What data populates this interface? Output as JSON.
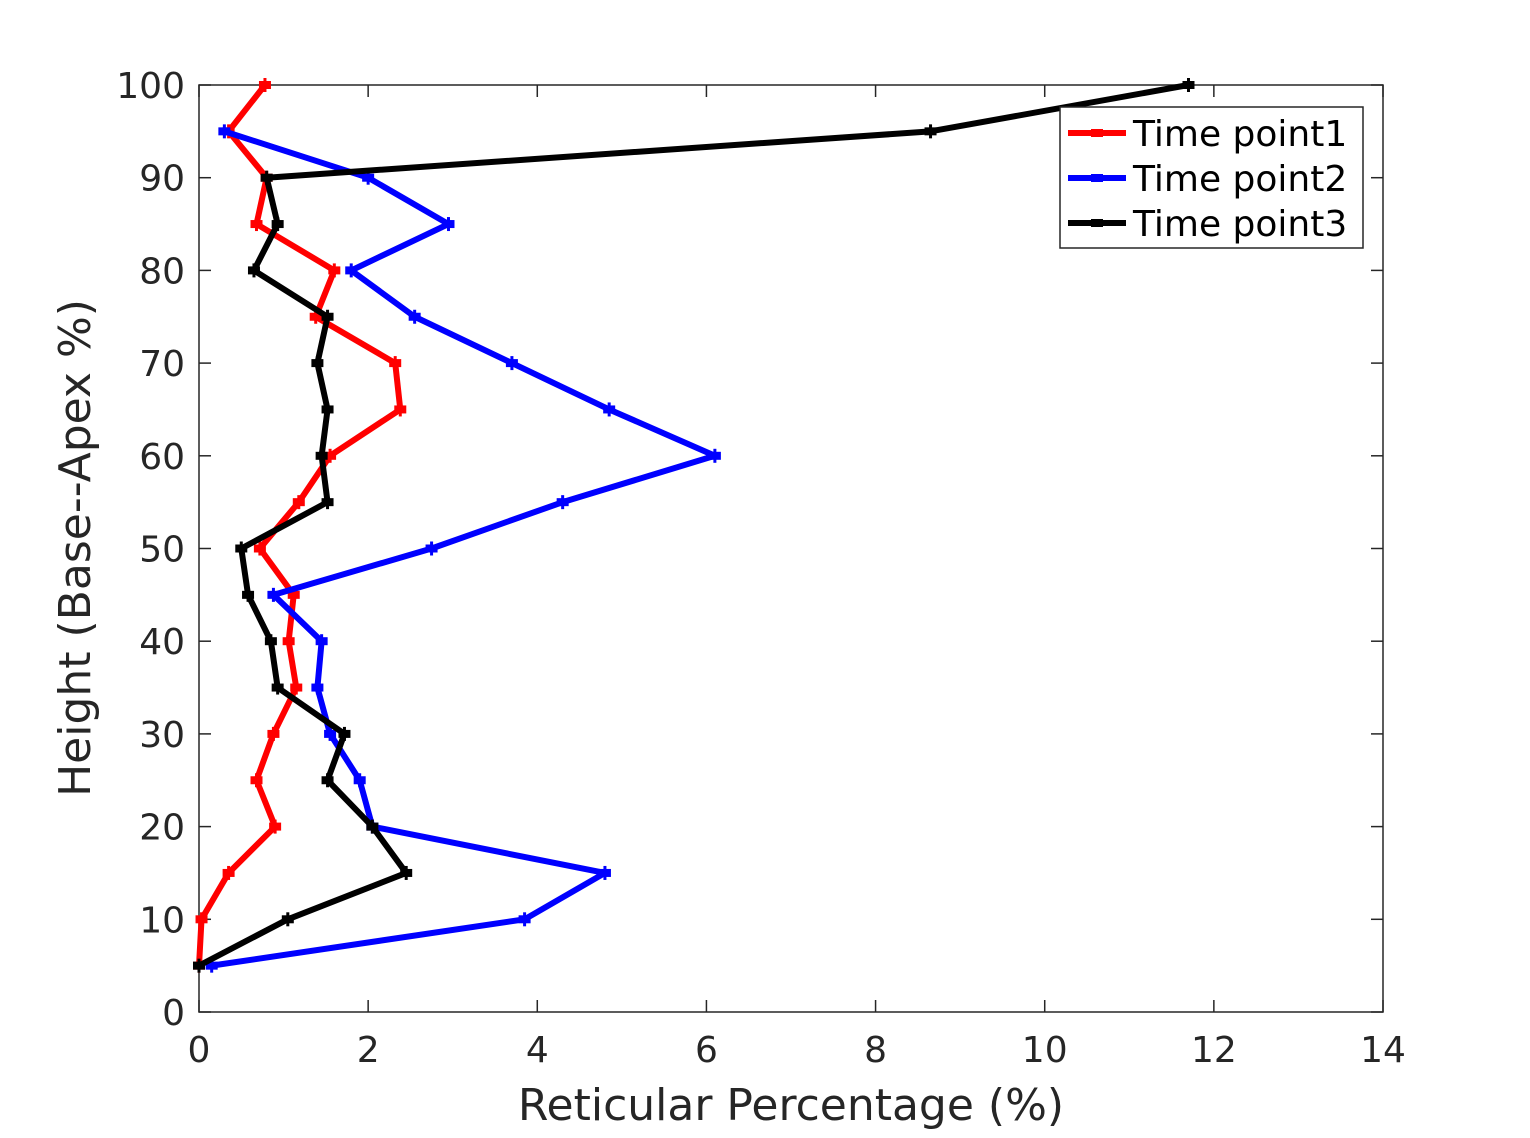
{
  "chart_data": {
    "type": "line",
    "xlabel": "Reticular Percentage (%)",
    "ylabel": "Height (Base--Apex %)",
    "xlim": [
      0,
      14
    ],
    "ylim": [
      0,
      100
    ],
    "xticks": [
      0,
      2,
      4,
      6,
      8,
      10,
      12,
      14
    ],
    "yticks": [
      0,
      10,
      20,
      30,
      40,
      50,
      60,
      70,
      80,
      90,
      100
    ],
    "grid": false,
    "legend_position": "top-right",
    "series": [
      {
        "name": "Time point1",
        "color": "#ff0000",
        "x": [
          0.0,
          0.03,
          0.35,
          0.9,
          0.68,
          0.88,
          1.15,
          1.06,
          1.12,
          0.72,
          1.18,
          1.55,
          2.38,
          2.32,
          1.38,
          1.6,
          0.68,
          0.8,
          0.35,
          0.78
        ],
        "y": [
          5,
          10,
          15,
          20,
          25,
          30,
          35,
          40,
          45,
          50,
          55,
          60,
          65,
          70,
          75,
          80,
          85,
          90,
          95,
          100
        ]
      },
      {
        "name": "Time point2",
        "color": "#0000ff",
        "x": [
          0.15,
          3.85,
          4.8,
          2.05,
          1.9,
          1.55,
          1.4,
          1.45,
          0.88,
          2.75,
          4.3,
          6.1,
          4.85,
          3.7,
          2.55,
          1.8,
          2.95,
          2.0,
          0.3
        ],
        "y": [
          5,
          10,
          15,
          20,
          25,
          30,
          35,
          40,
          45,
          50,
          55,
          60,
          65,
          70,
          75,
          80,
          85,
          90,
          95
        ]
      },
      {
        "name": "Time point3",
        "color": "#000000",
        "x": [
          0.0,
          1.05,
          2.45,
          2.05,
          1.52,
          1.72,
          0.93,
          0.85,
          0.58,
          0.5,
          1.52,
          1.45,
          1.52,
          1.4,
          1.52,
          0.65,
          0.93,
          0.8,
          8.65,
          11.7
        ],
        "y": [
          5,
          10,
          15,
          20,
          25,
          30,
          35,
          40,
          45,
          50,
          55,
          60,
          65,
          70,
          75,
          80,
          85,
          90,
          95,
          100
        ]
      }
    ]
  }
}
